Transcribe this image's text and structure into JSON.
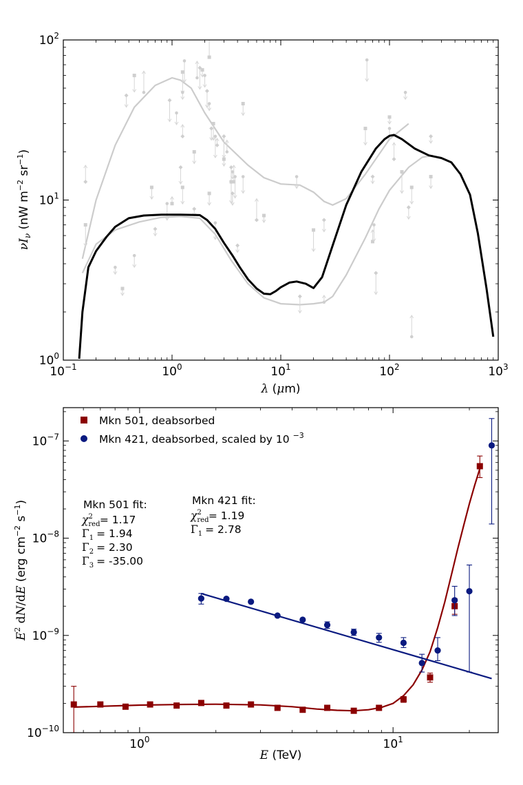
{
  "chart_data": [
    {
      "type": "line",
      "title": "",
      "xlabel": "λ (μm)",
      "ylabel": "νI_ν (nW m^-2 sr^-1)",
      "xscale": "log",
      "yscale": "log",
      "xlim": [
        0.1,
        1000
      ],
      "ylim": [
        1,
        100
      ],
      "xticks": [
        {
          "v": 0.1,
          "m": "10",
          "e": "-1"
        },
        {
          "v": 1,
          "m": "10",
          "e": "0"
        },
        {
          "v": 10,
          "m": "10",
          "e": "1"
        },
        {
          "v": 100,
          "m": "10",
          "e": "2"
        },
        {
          "v": 1000,
          "m": "10",
          "e": "3"
        }
      ],
      "yticks": [
        {
          "v": 1,
          "m": "10",
          "e": "0"
        },
        {
          "v": 10,
          "m": "10",
          "e": "1"
        },
        {
          "v": 100,
          "m": "10",
          "e": "2"
        }
      ],
      "colors": {
        "model": "#000000",
        "bounds": "#cccccc"
      },
      "series": [
        {
          "name": "EBL model (black)",
          "x": [
            0.14,
            0.15,
            0.17,
            0.2,
            0.25,
            0.3,
            0.4,
            0.55,
            0.8,
            1.2,
            1.8,
            2.1,
            2.5,
            3,
            3.6,
            4.2,
            5,
            6,
            7,
            8,
            9,
            10,
            12,
            14,
            17,
            20,
            24,
            30,
            40,
            55,
            75,
            90,
            100,
            110,
            130,
            170,
            230,
            300,
            370,
            450,
            550,
            650,
            780,
            900
          ],
          "y": [
            1.02,
            2,
            3.8,
            4.8,
            5.9,
            6.8,
            7.7,
            8.0,
            8.1,
            8.1,
            8.05,
            7.5,
            6.6,
            5.4,
            4.5,
            3.8,
            3.2,
            2.8,
            2.6,
            2.58,
            2.7,
            2.85,
            3.05,
            3.1,
            3.0,
            2.82,
            3.3,
            5.2,
            9.3,
            15,
            21,
            24,
            25.2,
            25.5,
            24,
            21,
            19,
            18.3,
            17.2,
            14.5,
            10.8,
            6.2,
            2.8,
            1.4
          ]
        },
        {
          "name": "Upper bound (gray)",
          "x": [
            0.15,
            0.2,
            0.3,
            0.45,
            0.7,
            1.0,
            1.2,
            1.5,
            2,
            3,
            5,
            7,
            10,
            15,
            20,
            25,
            30,
            40,
            60,
            100,
            150
          ],
          "y": [
            4.3,
            10,
            22,
            38,
            52,
            58,
            56,
            50,
            35,
            23,
            16.5,
            13.8,
            12.6,
            12.4,
            11.2,
            9.8,
            9.3,
            10.2,
            14.5,
            24,
            30
          ]
        },
        {
          "name": "Lower bound (gray)",
          "x": [
            0.15,
            0.2,
            0.3,
            0.5,
            0.8,
            1.2,
            1.8,
            2.5,
            3.5,
            5,
            7,
            10,
            15,
            20,
            25,
            30,
            40,
            60,
            80,
            100,
            150,
            200,
            250
          ],
          "y": [
            3.5,
            5.3,
            6.5,
            7.3,
            7.8,
            7.9,
            7.7,
            6.1,
            4.2,
            3.0,
            2.45,
            2.25,
            2.22,
            2.25,
            2.3,
            2.5,
            3.4,
            5.8,
            8.8,
            11.5,
            16,
            18.5,
            19
          ]
        }
      ],
      "points": [
        {
          "x": 0.35,
          "y": 2.8
        },
        {
          "x": 0.45,
          "y": 4.5
        },
        {
          "x": 0.16,
          "y": 13
        },
        {
          "x": 0.16,
          "y": 7.0
        },
        {
          "x": 0.3,
          "y": 3.8
        },
        {
          "x": 0.38,
          "y": 45
        },
        {
          "x": 0.45,
          "y": 60
        },
        {
          "x": 0.55,
          "y": 47
        },
        {
          "x": 0.7,
          "y": 6.6
        },
        {
          "x": 0.65,
          "y": 12
        },
        {
          "x": 0.9,
          "y": 9.5
        },
        {
          "x": 0.95,
          "y": 42
        },
        {
          "x": 1.0,
          "y": 9.5
        },
        {
          "x": 1.1,
          "y": 35
        },
        {
          "x": 1.2,
          "y": 16
        },
        {
          "x": 1.25,
          "y": 63
        },
        {
          "x": 1.25,
          "y": 47
        },
        {
          "x": 1.25,
          "y": 25
        },
        {
          "x": 1.25,
          "y": 12
        },
        {
          "x": 1.3,
          "y": 74
        },
        {
          "x": 1.6,
          "y": 8.8
        },
        {
          "x": 1.6,
          "y": 20
        },
        {
          "x": 1.7,
          "y": 58
        },
        {
          "x": 1.8,
          "y": 67
        },
        {
          "x": 1.9,
          "y": 65
        },
        {
          "x": 2.0,
          "y": 60
        },
        {
          "x": 2.1,
          "y": 48
        },
        {
          "x": 2.2,
          "y": 78
        },
        {
          "x": 2.2,
          "y": 40
        },
        {
          "x": 2.3,
          "y": 28
        },
        {
          "x": 2.4,
          "y": 30
        },
        {
          "x": 2.5,
          "y": 25
        },
        {
          "x": 2.6,
          "y": 22
        },
        {
          "x": 2.2,
          "y": 11
        },
        {
          "x": 2.5,
          "y": 7.2
        },
        {
          "x": 3.0,
          "y": 25
        },
        {
          "x": 3.0,
          "y": 18
        },
        {
          "x": 3.2,
          "y": 20
        },
        {
          "x": 3.5,
          "y": 16
        },
        {
          "x": 3.5,
          "y": 13
        },
        {
          "x": 3.6,
          "y": 15
        },
        {
          "x": 3.6,
          "y": 11
        },
        {
          "x": 3.7,
          "y": 13
        },
        {
          "x": 3.8,
          "y": 14
        },
        {
          "x": 4.0,
          "y": 5.2
        },
        {
          "x": 4.5,
          "y": 40
        },
        {
          "x": 4.5,
          "y": 14
        },
        {
          "x": 6,
          "y": 7.5
        },
        {
          "x": 7,
          "y": 8
        },
        {
          "x": 14,
          "y": 14
        },
        {
          "x": 15,
          "y": 2.5
        },
        {
          "x": 20,
          "y": 6.5
        },
        {
          "x": 25,
          "y": 2.3
        },
        {
          "x": 25,
          "y": 7.5
        },
        {
          "x": 60,
          "y": 28
        },
        {
          "x": 62,
          "y": 75
        },
        {
          "x": 70,
          "y": 14
        },
        {
          "x": 70,
          "y": 5.5
        },
        {
          "x": 72,
          "y": 7
        },
        {
          "x": 75,
          "y": 3.5
        },
        {
          "x": 100,
          "y": 33
        },
        {
          "x": 100,
          "y": 28
        },
        {
          "x": 110,
          "y": 18
        },
        {
          "x": 130,
          "y": 15
        },
        {
          "x": 140,
          "y": 47
        },
        {
          "x": 150,
          "y": 9
        },
        {
          "x": 160,
          "y": 12
        },
        {
          "x": 160,
          "y": 1.4
        },
        {
          "x": 240,
          "y": 25
        },
        {
          "x": 240,
          "y": 14
        }
      ]
    },
    {
      "type": "scatter",
      "title": "",
      "xlabel": "E (TeV)",
      "ylabel": "E^2 dN/dE (erg cm^-2 s^-1)",
      "xscale": "log",
      "yscale": "log",
      "xlim": [
        0.5,
        26
      ],
      "ylim": [
        1e-10,
        2.2e-07
      ],
      "xticks": [
        {
          "v": 1,
          "m": "10",
          "e": "0"
        },
        {
          "v": 10,
          "m": "10",
          "e": "1"
        }
      ],
      "yticks": [
        {
          "v": 1e-10,
          "m": "10",
          "e": "-10"
        },
        {
          "v": 1e-09,
          "m": "10",
          "e": "-9"
        },
        {
          "v": 1e-08,
          "m": "10",
          "e": "-8"
        },
        {
          "v": 1e-07,
          "m": "10",
          "e": "-7"
        }
      ],
      "legend_position": "top-left",
      "series": [
        {
          "name": "Mkn 501, deabsorbed",
          "marker": "square",
          "color": "#8b0000",
          "x": [
            0.55,
            0.7,
            0.88,
            1.1,
            1.4,
            1.75,
            2.2,
            2.75,
            3.5,
            4.4,
            5.5,
            7.0,
            8.8,
            11.0,
            14.0,
            17.5,
            22.0
          ],
          "y": [
            1.95e-10,
            1.95e-10,
            1.85e-10,
            1.95e-10,
            1.9e-10,
            2.02e-10,
            1.9e-10,
            1.95e-10,
            1.8e-10,
            1.72e-10,
            1.8e-10,
            1.68e-10,
            1.8e-10,
            2.2e-10,
            3.7e-10,
            2e-09,
            5.5e-08
          ],
          "yerr": [
            [
              1e-10,
              3e-10
            ],
            null,
            null,
            null,
            null,
            null,
            null,
            null,
            null,
            null,
            null,
            null,
            null,
            [
              2.05e-10,
              2.35e-10
            ],
            [
              3.3e-10,
              4.1e-10
            ],
            [
              1.65e-09,
              2.4e-09
            ],
            [
              4.2e-08,
              7e-08
            ]
          ]
        },
        {
          "name": "Mkn 421, deabsorbed, scaled by 10^-3",
          "marker": "circle",
          "color": "#0a1a80",
          "x": [
            1.75,
            2.2,
            2.75,
            3.5,
            4.4,
            5.5,
            7.0,
            8.8,
            11.0,
            13.0,
            15.0,
            17.5,
            20.0,
            24.5
          ],
          "y": [
            2.4e-09,
            2.38e-09,
            2.22e-09,
            1.6e-09,
            1.45e-09,
            1.28e-09,
            1.08e-09,
            9.5e-10,
            8.4e-10,
            5.2e-10,
            7e-10,
            2.3e-09,
            2.85e-09,
            9e-08
          ],
          "yerr": [
            [
              2.1e-09,
              2.7e-09
            ],
            null,
            null,
            null,
            null,
            [
              1.18e-09,
              1.38e-09
            ],
            [
              1e-09,
              1.16e-09
            ],
            [
              8.5e-10,
              1.05e-09
            ],
            [
              7.5e-10,
              9.5e-10
            ],
            [
              4.2e-10,
              6.4e-10
            ],
            [
              5.5e-10,
              9.5e-10
            ],
            [
              1.6e-09,
              3.2e-09
            ],
            [
              4.2e-10,
              5.3e-09
            ],
            [
              1.4e-08,
              1.7e-07
            ]
          ]
        }
      ],
      "fits": [
        {
          "name": "Mkn 501 fit",
          "color": "#8b0000",
          "x": [
            0.55,
            1,
            1.5,
            2,
            3,
            4,
            5,
            6,
            7,
            8,
            9,
            10,
            11,
            12,
            13,
            14,
            15,
            16,
            17,
            18,
            19,
            20,
            21,
            22
          ],
          "y": [
            1.83e-10,
            1.92e-10,
            1.95e-10,
            1.96e-10,
            1.93e-10,
            1.85e-10,
            1.75e-10,
            1.7e-10,
            1.68e-10,
            1.72e-10,
            1.82e-10,
            2e-10,
            2.4e-10,
            3.1e-10,
            4.4e-10,
            6.8e-10,
            1.2e-09,
            2.2e-09,
            4.2e-09,
            7.8e-09,
            1.35e-08,
            2.25e-08,
            3.5e-08,
            5.2e-08
          ]
        },
        {
          "name": "Mkn 421 fit",
          "color": "#0a1a80",
          "x": [
            1.75,
            24.5
          ],
          "y": [
            2.7e-09,
            3.6e-10
          ]
        }
      ],
      "annotations": {
        "mkn501": {
          "title": "Mkn 501 fit:",
          "chi2_label": "χ²red",
          "chi2": "= 1.17",
          "g1_label": "Γ1",
          "g1": "= 1.94",
          "g2_label": "Γ2",
          "g2": "= 2.30",
          "g3_label": "Γ3",
          "g3": "= -35.00"
        },
        "mkn421": {
          "title": "Mkn 421 fit:",
          "chi2_label": "χ²red",
          "chi2": "= 1.19",
          "g1_label": "Γ1",
          "g1": "= 2.78"
        }
      }
    }
  ]
}
